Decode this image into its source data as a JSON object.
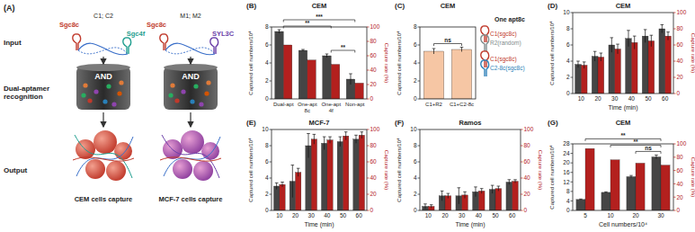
{
  "panel_a": {
    "label": "(A)",
    "row_labels": [
      "Input",
      "Dual-aptamer recognition",
      "Output"
    ],
    "designs": [
      {
        "aptamer_1": "Sgc8c",
        "linkers": "C1; C2",
        "aptamer_2": "Sgc4f",
        "gate": "AND",
        "output": "CEM cells capture"
      },
      {
        "aptamer_1": "Sgc8c",
        "linkers": "M1; M2",
        "aptamer_2": "SYL3C",
        "gate": "AND",
        "output": "MCF-7 cells capture"
      }
    ]
  },
  "chart_data": [
    {
      "type": "bar",
      "panel_label": "(B)",
      "title": "CEM",
      "categories": [
        "Dual-apt",
        "One-apt 8c",
        "One-apt 4f",
        "Non-apt"
      ],
      "y_label": "Captured cell numbers/10⁴",
      "y2_label": "Capture rate (%)",
      "ylim": [
        0,
        8
      ],
      "yticks": [
        0,
        2,
        4,
        6,
        8
      ],
      "y2lim": [
        0,
        100
      ],
      "y2ticks": [
        0,
        20,
        40,
        60,
        80,
        100
      ],
      "series": [
        {
          "color": "#454545",
          "values": [
            7.5,
            5.4,
            4.8,
            2.2
          ],
          "errors": [
            0.2,
            0.1,
            0.2,
            0.6
          ]
        },
        {
          "color": "#b3201e",
          "axis": "y2",
          "values": [
            75,
            54,
            48,
            22
          ]
        }
      ],
      "annotations": [
        {
          "text": "***",
          "between": [
            "Dual-apt",
            "Non-apt"
          ]
        },
        {
          "text": "**",
          "between": [
            "Dual-apt",
            "One-apt 4f"
          ]
        },
        {
          "text": "**",
          "between": [
            "One-apt 4f",
            "Non-apt"
          ]
        }
      ]
    },
    {
      "type": "bar",
      "panel_label": "(C)",
      "title": "CEM",
      "categories": [
        "C1+R2",
        "C1+C2-8c"
      ],
      "y_label": "Captured cell numbers/10⁴",
      "ylim": [
        0,
        8
      ],
      "yticks": [
        0,
        2,
        4,
        6,
        8
      ],
      "series": [
        {
          "color": "#f6c6a4",
          "values": [
            5.3,
            5.5
          ],
          "errors": [
            0.3,
            0.25
          ]
        }
      ],
      "annotations": [
        {
          "text": "ns",
          "between": [
            "C1+R2",
            "C1+C2-8c"
          ]
        }
      ],
      "inset": {
        "title": "One apt8c",
        "items": [
          "C1(sgc8c)",
          "R2(random)",
          "C1(sgc8c)",
          "C2-8c(sgc8c)"
        ]
      }
    },
    {
      "type": "bar",
      "panel_label": "(D)",
      "title": "CEM",
      "categories": [
        10,
        20,
        30,
        40,
        50,
        60
      ],
      "x_label": "Time (min)",
      "y_label": "Captured cell numbers/10⁴",
      "y2_label": "Capture rate (%)",
      "ylim": [
        0,
        10
      ],
      "yticks": [
        0,
        2,
        4,
        6,
        8,
        10
      ],
      "y2lim": [
        0,
        100
      ],
      "y2ticks": [
        0,
        20,
        40,
        60,
        80,
        100
      ],
      "series": [
        {
          "color": "#454545",
          "values": [
            3.6,
            4.6,
            6.0,
            6.8,
            7.1,
            8.0
          ],
          "errors": [
            0.4,
            0.6,
            0.9,
            1.0,
            0.8,
            0.5
          ]
        },
        {
          "color": "#b3201e",
          "axis": "y2",
          "values": [
            35,
            45,
            55,
            63,
            65,
            71
          ],
          "errors": [
            4,
            5,
            6,
            8,
            7,
            5
          ]
        }
      ]
    },
    {
      "type": "bar",
      "panel_label": "(E)",
      "title": "MCF-7",
      "categories": [
        10,
        20,
        30,
        40,
        50,
        60
      ],
      "x_label": "Time (min)",
      "y_label": "Captured cell numbers/10⁴",
      "y2_label": "Capture rate (%)",
      "ylim": [
        0,
        10
      ],
      "yticks": [
        0,
        2,
        4,
        6,
        8,
        10
      ],
      "y2lim": [
        0,
        100
      ],
      "y2ticks": [
        0,
        20,
        40,
        60,
        80,
        100
      ],
      "series": [
        {
          "color": "#454545",
          "values": [
            3.0,
            3.6,
            8.0,
            8.3,
            8.5,
            8.8
          ],
          "errors": [
            0.4,
            2.0,
            1.5,
            0.8,
            0.6,
            0.5
          ]
        },
        {
          "color": "#b3201e",
          "axis": "y2",
          "values": [
            32,
            47,
            88,
            87,
            92,
            93
          ],
          "errors": [
            3,
            5,
            6,
            4,
            5,
            4
          ]
        }
      ]
    },
    {
      "type": "bar",
      "panel_label": "(F)",
      "title": "Ramos",
      "categories": [
        10,
        20,
        30,
        40,
        50,
        60
      ],
      "x_label": "Time (min)",
      "y_label": "Captured cell numbers/10⁴",
      "y2_label": "Capture rate (%)",
      "ylim": [
        0,
        10
      ],
      "yticks": [
        0,
        2,
        4,
        6,
        8,
        10
      ],
      "y2lim": [
        0,
        100
      ],
      "y2ticks": [
        0,
        20,
        40,
        60,
        80,
        100
      ],
      "series": [
        {
          "color": "#454545",
          "values": [
            0.5,
            1.8,
            1.8,
            2.3,
            2.6,
            3.5
          ],
          "errors": [
            0.3,
            0.6,
            1.0,
            0.6,
            0.5,
            0.3
          ]
        },
        {
          "color": "#b3201e",
          "axis": "y2",
          "values": [
            5,
            18,
            19,
            24,
            27,
            36
          ],
          "errors": [
            2,
            3,
            4,
            3,
            3,
            2
          ]
        }
      ]
    },
    {
      "type": "bar",
      "panel_label": "(G)",
      "title": "CEM",
      "categories": [
        5,
        10,
        20,
        30
      ],
      "x_label": "Cell numbers/10⁴",
      "y_label": "Captured cell numbers/10⁴",
      "y2_label": "Capture rate (%)",
      "ylim": [
        0,
        28
      ],
      "yticks": [
        0,
        4,
        8,
        12,
        16,
        20,
        24,
        28
      ],
      "y2lim": [
        0,
        100
      ],
      "y2ticks": [
        0,
        20,
        40,
        60,
        80,
        100
      ],
      "series": [
        {
          "color": "#454545",
          "values": [
            4.6,
            7.6,
            14.2,
            22.5
          ],
          "errors": [
            0.2,
            0.2,
            0.5,
            0.8
          ]
        },
        {
          "color": "#b3201e",
          "axis": "y2",
          "values": [
            93,
            76,
            71,
            68
          ]
        }
      ],
      "annotations": [
        {
          "text": "**",
          "between": [
            5,
            30
          ]
        },
        {
          "text": "**",
          "between": [
            10,
            30
          ]
        },
        {
          "text": "ns",
          "between": [
            20,
            30
          ]
        }
      ]
    }
  ]
}
